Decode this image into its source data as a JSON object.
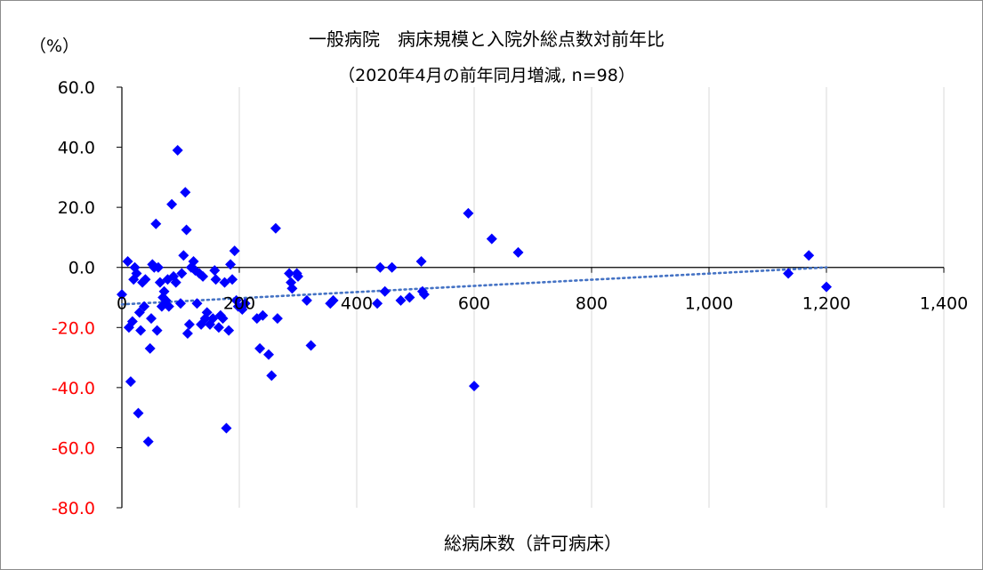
{
  "chart_data": {
    "type": "scatter",
    "title": "一般病院　病床規模と入院外総点数対前年比",
    "subtitle": "（2020年4月の前年同月増減, n=98）",
    "ylabel_unit": "（%）",
    "xlabel": "総病床数（許可病床）",
    "xlim": [
      0,
      1400
    ],
    "ylim": [
      -80,
      60
    ],
    "x_ticks": [
      "0",
      "200",
      "400",
      "600",
      "800",
      "1,000",
      "1,200",
      "1,400"
    ],
    "x_tick_values": [
      0,
      200,
      400,
      600,
      800,
      1000,
      1200,
      1400
    ],
    "y_ticks": [
      "60.0",
      "40.0",
      "20.0",
      "0.0",
      "-20.0",
      "-40.0",
      "-60.0",
      "-80.0"
    ],
    "y_tick_values": [
      60,
      40,
      20,
      0,
      -20,
      -40,
      -60,
      -80
    ],
    "grid": "vertical",
    "negative_tick_color": "#ff0000",
    "marker_color": "#0000ff",
    "marker": "diamond",
    "trendline": {
      "type": "linear",
      "style": "dotted",
      "color": "#4472c4",
      "from": [
        0,
        -12.3
      ],
      "to": [
        1200,
        0
      ]
    },
    "points": [
      [
        0,
        -9
      ],
      [
        10,
        2
      ],
      [
        12,
        -20
      ],
      [
        15,
        -38
      ],
      [
        18,
        -18
      ],
      [
        20,
        -4
      ],
      [
        22,
        0
      ],
      [
        25,
        -2
      ],
      [
        28,
        -48.5
      ],
      [
        30,
        -15
      ],
      [
        32,
        -21
      ],
      [
        35,
        -5
      ],
      [
        38,
        -13
      ],
      [
        40,
        -4
      ],
      [
        45,
        -58
      ],
      [
        48,
        -27
      ],
      [
        50,
        -17
      ],
      [
        52,
        1
      ],
      [
        55,
        0
      ],
      [
        58,
        14.5
      ],
      [
        60,
        -21
      ],
      [
        62,
        0
      ],
      [
        65,
        -5
      ],
      [
        68,
        -13
      ],
      [
        70,
        -10
      ],
      [
        72,
        -8
      ],
      [
        75,
        -11
      ],
      [
        78,
        -4
      ],
      [
        80,
        -13
      ],
      [
        85,
        21
      ],
      [
        88,
        -3
      ],
      [
        92,
        -5
      ],
      [
        95,
        39
      ],
      [
        100,
        -12
      ],
      [
        102,
        -2
      ],
      [
        105,
        4
      ],
      [
        108,
        25
      ],
      [
        110,
        12.5
      ],
      [
        112,
        -22
      ],
      [
        115,
        -19
      ],
      [
        118,
        0
      ],
      [
        122,
        2
      ],
      [
        125,
        -1
      ],
      [
        128,
        -12
      ],
      [
        132,
        -2
      ],
      [
        135,
        -19
      ],
      [
        138,
        -3
      ],
      [
        142,
        -17
      ],
      [
        145,
        -15
      ],
      [
        150,
        -19
      ],
      [
        155,
        -17
      ],
      [
        158,
        -1
      ],
      [
        160,
        -4
      ],
      [
        165,
        -20
      ],
      [
        168,
        -16
      ],
      [
        172,
        -17
      ],
      [
        175,
        -5
      ],
      [
        178,
        -53.5
      ],
      [
        182,
        -21
      ],
      [
        185,
        1
      ],
      [
        188,
        -4
      ],
      [
        192,
        5.5
      ],
      [
        195,
        -11
      ],
      [
        198,
        -13
      ],
      [
        205,
        -14
      ],
      [
        210,
        -12
      ],
      [
        230,
        -17
      ],
      [
        235,
        -27
      ],
      [
        240,
        -16
      ],
      [
        250,
        -29
      ],
      [
        255,
        -36
      ],
      [
        262,
        13
      ],
      [
        265,
        -17
      ],
      [
        285,
        -2
      ],
      [
        288,
        -5
      ],
      [
        290,
        -7
      ],
      [
        298,
        -2
      ],
      [
        300,
        -3
      ],
      [
        315,
        -11
      ],
      [
        322,
        -26
      ],
      [
        355,
        -12
      ],
      [
        360,
        -11
      ],
      [
        435,
        -12
      ],
      [
        440,
        0
      ],
      [
        448,
        -8
      ],
      [
        460,
        0
      ],
      [
        475,
        -11
      ],
      [
        490,
        -10
      ],
      [
        510,
        2
      ],
      [
        512,
        -8
      ],
      [
        515,
        -9
      ],
      [
        590,
        18
      ],
      [
        600,
        -39.5
      ],
      [
        630,
        9.5
      ],
      [
        675,
        5
      ],
      [
        1135,
        -2
      ],
      [
        1170,
        4
      ],
      [
        1200,
        -6.5
      ]
    ]
  }
}
